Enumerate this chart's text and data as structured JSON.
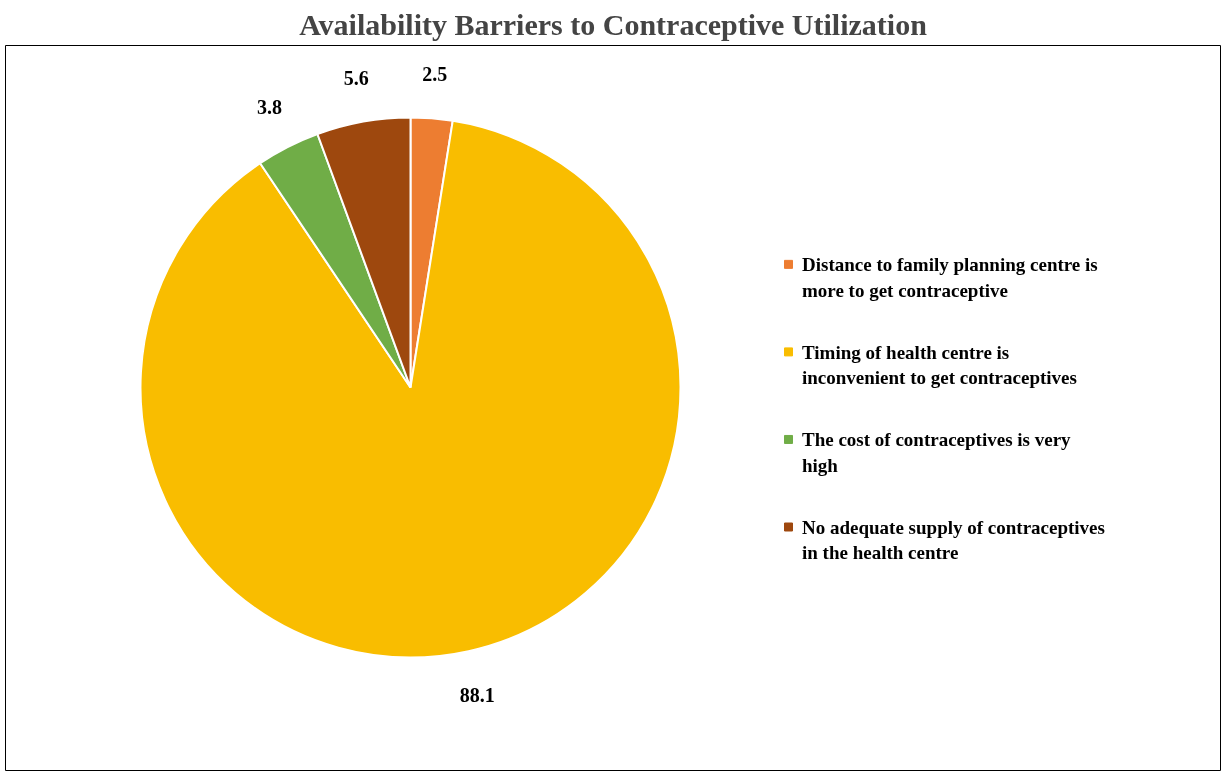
{
  "chart_data": {
    "type": "pie",
    "title": "Availability Barriers to Contraceptive Utilization",
    "categories": [
      "Distance to family planning  centre is more to get contraceptive",
      "Timing of health centre is inconvenient to get contraceptives",
      "The cost of contraceptives is very high",
      "No adequate supply of contraceptives in the health centre"
    ],
    "values": [
      2.5,
      88.1,
      3.8,
      5.6
    ],
    "colors": [
      "#ed7d31",
      "#f9bd00",
      "#70ad47",
      "#9e480e"
    ],
    "data_labels": true,
    "legend": "right"
  }
}
